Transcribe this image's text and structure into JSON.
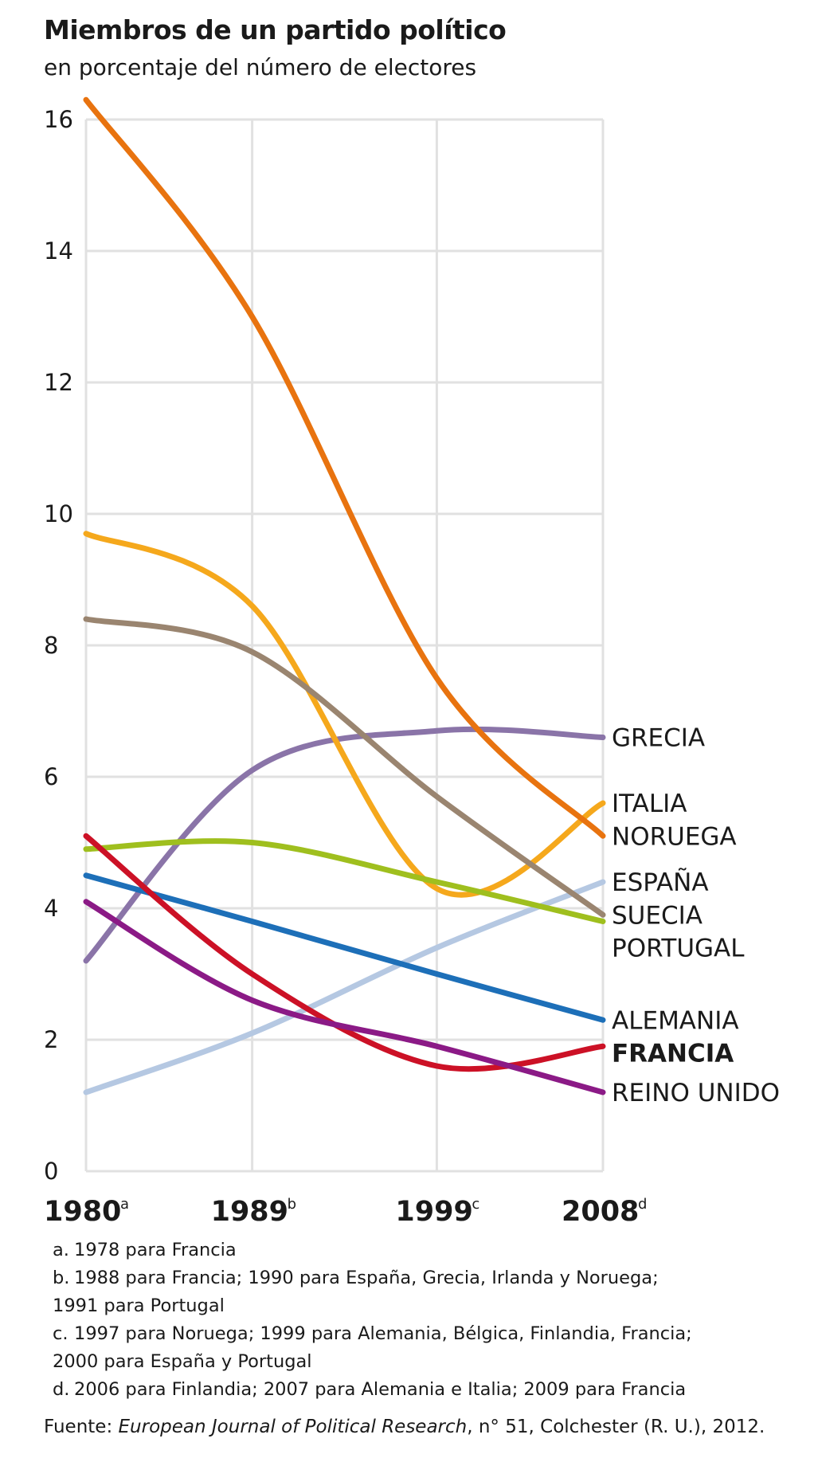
{
  "chart_data": {
    "type": "line",
    "title": "Miembros de un partido político",
    "subtitle": "en porcentaje del número de electores",
    "x": [
      1980,
      1989,
      1999,
      2008
    ],
    "x_labels": [
      "1980",
      "1989",
      "1999",
      "2008"
    ],
    "x_superscripts": [
      "a",
      "b",
      "c",
      "d"
    ],
    "y_ticks": [
      "0",
      "2",
      "4",
      "6",
      "8",
      "10",
      "12",
      "14",
      "16"
    ],
    "ylim": [
      0,
      16
    ],
    "grid": true,
    "series": [
      {
        "name": "GRECIA",
        "color": "#8a74a8",
        "bold": false,
        "values": [
          3.2,
          6.1,
          6.7,
          6.6
        ]
      },
      {
        "name": "ITALIA",
        "color": "#f5a81c",
        "bold": false,
        "values": [
          9.7,
          8.6,
          4.3,
          5.6
        ]
      },
      {
        "name": "NORUEGA",
        "color": "#e8730f",
        "bold": false,
        "values": [
          16.3,
          13.0,
          7.5,
          5.1
        ]
      },
      {
        "name": "ESPAÑA",
        "color": "#b5c8e2",
        "bold": false,
        "values": [
          1.2,
          2.1,
          3.4,
          4.4
        ]
      },
      {
        "name": "SUECIA",
        "color": "#9a8570",
        "bold": false,
        "values": [
          8.4,
          7.9,
          5.7,
          3.9
        ]
      },
      {
        "name": "PORTUGAL",
        "color": "#9fbf1e",
        "bold": false,
        "values": [
          4.9,
          5.0,
          4.4,
          3.8
        ]
      },
      {
        "name": "ALEMANIA",
        "color": "#1d6fb8",
        "bold": false,
        "values": [
          4.5,
          3.8,
          3.0,
          2.3
        ]
      },
      {
        "name": "FRANCIA",
        "color": "#cc1126",
        "bold": true,
        "values": [
          5.1,
          3.0,
          1.6,
          1.9
        ]
      },
      {
        "name": "REINO UNIDO",
        "color": "#8b1a86",
        "bold": false,
        "values": [
          4.1,
          2.6,
          1.9,
          1.2
        ]
      }
    ]
  },
  "footnotes": [
    {
      "label": "a.",
      "lines": [
        "1978 para Francia"
      ]
    },
    {
      "label": "b.",
      "lines": [
        "1988 para Francia; 1990 para España, Grecia, Irlanda y Noruega;",
        "1991 para Portugal"
      ]
    },
    {
      "label": "c.",
      "lines": [
        "1997 para Noruega; 1999 para Alemania, Bélgica, Finlandia, Francia;",
        "2000 para España y Portugal"
      ]
    },
    {
      "label": "d.",
      "lines": [
        "2006 para Finlandia; 2007 para Alemania e Italia; 2009 para Francia"
      ]
    }
  ],
  "source": {
    "prefix": "Fuente: ",
    "journal": "European Journal of Political Research",
    "suffix": ", n° 51, Colchester (R. U.), 2012."
  }
}
